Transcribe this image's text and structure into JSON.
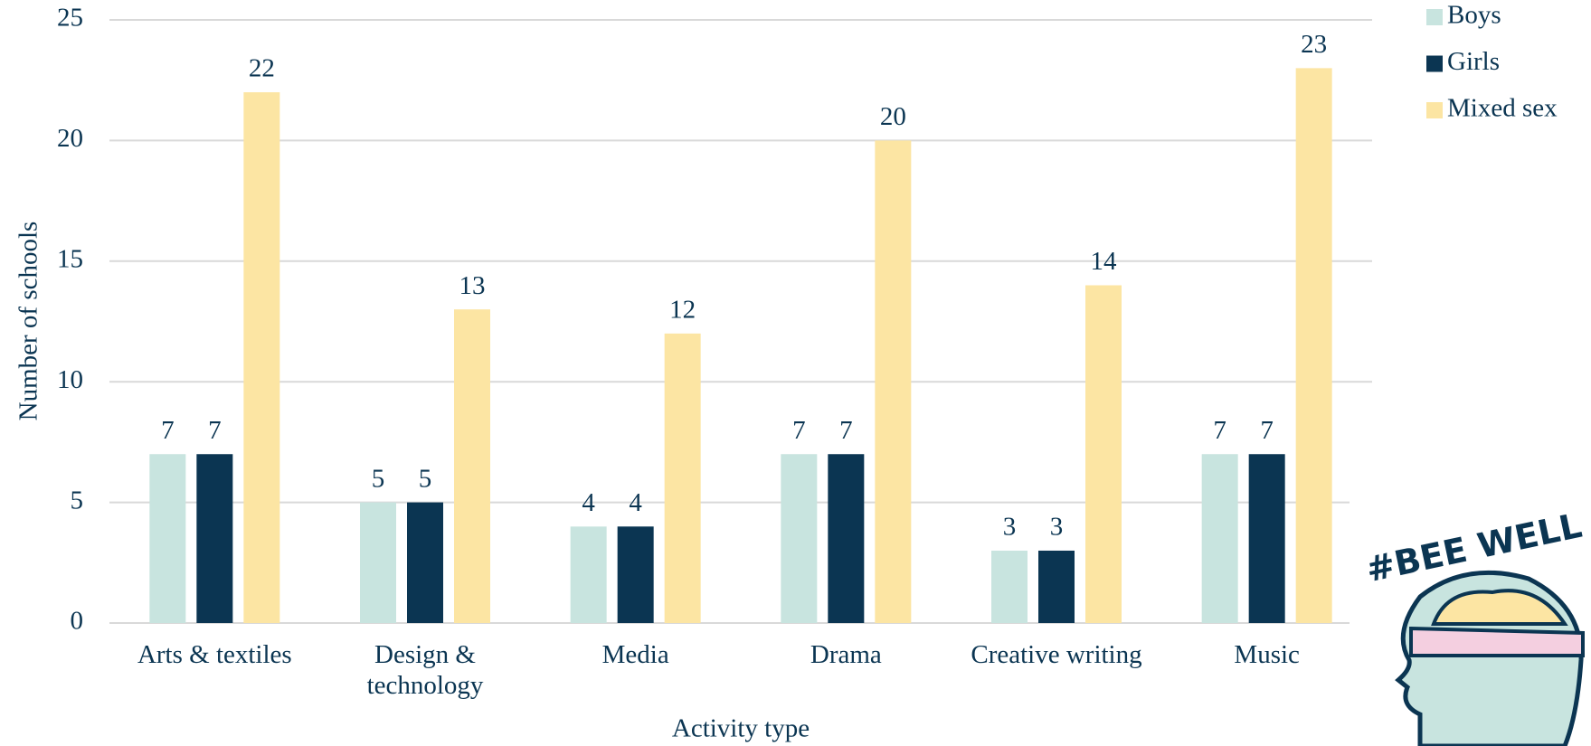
{
  "chart_data": {
    "type": "bar",
    "categories": [
      "Arts & textiles",
      "Design & technology",
      "Media",
      "Drama",
      "Creative writing",
      "Music"
    ],
    "series": [
      {
        "name": "Boys",
        "color": "#c8e4df",
        "values": [
          7,
          5,
          4,
          7,
          3,
          7
        ]
      },
      {
        "name": "Girls",
        "color": "#0b3552",
        "values": [
          7,
          5,
          4,
          7,
          3,
          7
        ]
      },
      {
        "name": "Mixed sex",
        "color": "#fce5a3",
        "values": [
          22,
          13,
          12,
          20,
          14,
          23
        ]
      }
    ],
    "xlabel": "Activity type",
    "ylabel": "Number of schools",
    "ylim": [
      0,
      25
    ],
    "yticks": [
      0,
      5,
      10,
      15,
      20,
      25
    ],
    "grid": true,
    "legend": "top-right"
  },
  "logo": {
    "text": "#BEE WELL"
  }
}
